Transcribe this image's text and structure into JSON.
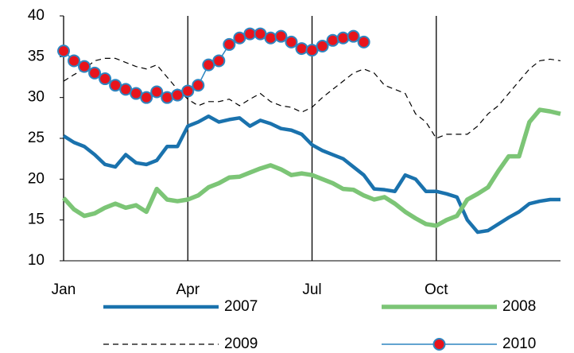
{
  "chart_data": {
    "type": "line",
    "x": [
      0,
      0.25,
      0.5,
      0.75,
      1,
      1.25,
      1.5,
      1.75,
      2,
      2.25,
      2.5,
      2.75,
      3,
      3.25,
      3.5,
      3.75,
      4,
      4.25,
      4.5,
      4.75,
      5,
      5.25,
      5.5,
      5.75,
      6,
      6.25,
      6.5,
      6.75,
      7,
      7.25,
      7.5,
      7.75,
      8,
      8.25,
      8.5,
      8.75,
      9,
      9.25,
      9.5,
      9.75,
      10,
      10.25,
      10.5,
      10.75,
      11,
      11.25,
      11.5,
      11.75,
      12
    ],
    "series": [
      {
        "name": "2007",
        "color": "#1a72ad",
        "values": [
          25.3,
          24.5,
          24,
          23,
          21.8,
          21.5,
          23,
          22,
          21.8,
          22.3,
          24,
          24,
          26.5,
          27,
          27.7,
          27,
          27.3,
          27.5,
          26.5,
          27.2,
          26.8,
          26.2,
          26,
          25.5,
          24.2,
          23.5,
          23,
          22.5,
          21.5,
          20.5,
          18.8,
          18.7,
          18.5,
          20.5,
          20,
          18.5,
          18.5,
          18.2,
          17.8,
          15,
          13.5,
          13.7,
          14.5,
          15.3,
          16,
          17,
          17.3,
          17.5,
          17.5
        ]
      },
      {
        "name": "2008",
        "color": "#7cc576",
        "values": [
          17.7,
          16.3,
          15.5,
          15.8,
          16.5,
          17,
          16.5,
          16.8,
          16,
          18.8,
          17.5,
          17.3,
          17.5,
          18,
          19,
          19.5,
          20.2,
          20.3,
          20.8,
          21.3,
          21.7,
          21.2,
          20.5,
          20.7,
          20.5,
          20,
          19.5,
          18.8,
          18.7,
          18,
          17.5,
          17.8,
          17,
          16,
          15.2,
          14.5,
          14.3,
          15,
          15.5,
          17.5,
          18.2,
          19,
          21,
          22.8,
          22.8,
          27,
          28.5,
          28.3,
          28
        ]
      },
      {
        "name": "2009",
        "color": "#000000",
        "line_style": "dashed",
        "values": [
          32,
          32.8,
          33.5,
          34.5,
          34.8,
          34.8,
          34.3,
          33.8,
          33.5,
          34,
          32.5,
          31,
          29.8,
          29,
          29.5,
          29.5,
          29.8,
          29,
          29.8,
          30.5,
          29.5,
          29,
          28.8,
          28.2,
          28.8,
          30,
          31,
          32,
          33,
          33.5,
          33,
          31.5,
          31,
          30.5,
          28,
          27,
          25,
          25.5,
          25.5,
          25.5,
          26.5,
          28,
          29,
          30.5,
          32,
          33.5,
          34.5,
          34.7,
          34.5
        ]
      },
      {
        "name": "2010",
        "color": "#2e86c1",
        "marker": "circle",
        "marker_color": "#e8141c",
        "values": [
          35.7,
          34.5,
          33.8,
          33,
          32.3,
          31.5,
          31,
          30.5,
          30,
          30.7,
          30,
          30.3,
          30.8,
          31.5,
          34,
          34.5,
          36.5,
          37.3,
          37.8,
          37.8,
          37.3,
          37.5,
          36.8,
          36,
          35.8,
          36.3,
          37,
          37.3,
          37.5,
          36.8,
          null,
          null,
          null,
          null,
          null,
          null,
          null,
          null,
          null,
          null,
          null,
          null,
          null,
          null,
          null,
          null,
          null,
          null,
          null
        ]
      }
    ],
    "xlim": [
      0,
      12
    ],
    "xticks": [
      {
        "value": 0,
        "label": "Jan"
      },
      {
        "value": 3,
        "label": "Apr"
      },
      {
        "value": 6,
        "label": "Jul"
      },
      {
        "value": 9,
        "label": "Oct"
      }
    ],
    "ylim": [
      10,
      40
    ],
    "yticks": [
      10,
      15,
      20,
      25,
      30,
      35,
      40
    ],
    "grid": "x",
    "legend": "bottom"
  }
}
